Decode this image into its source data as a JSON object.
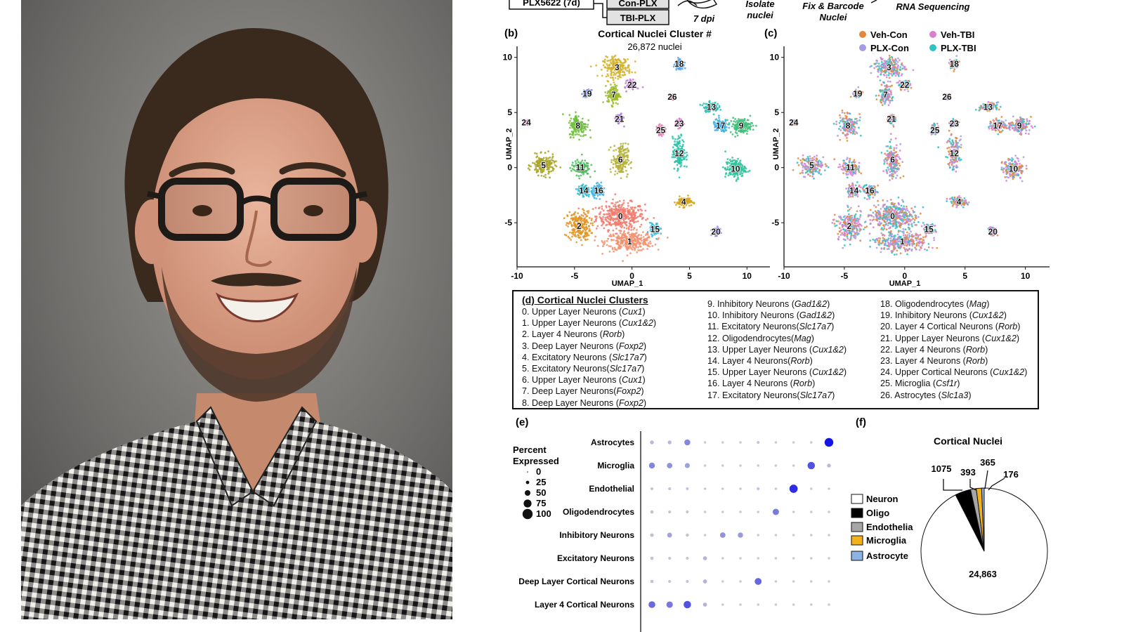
{
  "workflow": {
    "boxes": [
      "PLX5622 (7d)",
      "Con-PLX",
      "TBI-PLX"
    ],
    "steps": [
      "7 dpi",
      "Isolate nuclei",
      "Fix & Barcode Nuclei",
      "RNA Sequencing"
    ]
  },
  "panel_b": {
    "letter": "(b)",
    "title": "Cortical Nuclei Cluster #",
    "subtitle": "26,872 nuclei",
    "xlabel": "UMAP_1",
    "ylabel": "UMAP_2"
  },
  "panel_c": {
    "letter": "(c)",
    "xlabel": "UMAP_1",
    "ylabel": "UMAP_2",
    "legend": [
      {
        "label": "Veh-Con",
        "color": "#e3883a"
      },
      {
        "label": "Veh-TBI",
        "color": "#d97fd0"
      },
      {
        "label": "PLX-Con",
        "color": "#a89be4"
      },
      {
        "label": "PLX-TBI",
        "color": "#2cc3c3"
      }
    ]
  },
  "cluster_table": {
    "letter": "(d)",
    "title": "Cortical Nuclei Clusters",
    "items": [
      {
        "text": "0. Upper Layer Neurons (",
        "gene": "Cux1",
        "end": ")"
      },
      {
        "text": "1. Upper Layer Neurons (",
        "gene": "Cux1&2",
        "end": ")"
      },
      {
        "text": "2. Layer 4 Neurons (",
        "gene": "Rorb",
        "end": ")"
      },
      {
        "text": "3. Deep Layer Neurons (",
        "gene": "Foxp2",
        "end": ")"
      },
      {
        "text": "4. Excitatory Neurons (",
        "gene": "Slc17a7",
        "end": ")"
      },
      {
        "text": "5. Excitatory Neurons(",
        "gene": "Slc17a7",
        "end": ")"
      },
      {
        "text": "6. Upper Layer Neurons (",
        "gene": "Cux1",
        "end": ")"
      },
      {
        "text": "7. Deep Layer Neurons(",
        "gene": "Foxp2",
        "end": ")"
      },
      {
        "text": "8. Deep Layer Neurons (",
        "gene": "Foxp2",
        "end": ")"
      },
      {
        "text": "9.  Inhibitory Neurons (",
        "gene": "Gad1&2",
        "end": ")"
      },
      {
        "text": "10. Inhibitory Neurons (",
        "gene": "Gad1&2",
        "end": ")"
      },
      {
        "text": "11. Excitatory Neurons(",
        "gene": "Slc17a7",
        "end": ")"
      },
      {
        "text": "12. Oligodendrocytes(",
        "gene": "Mag",
        "end": ")"
      },
      {
        "text": "13. Upper Layer Neurons (",
        "gene": "Cux1&2",
        "end": ")"
      },
      {
        "text": "14. Layer 4 Neurons(",
        "gene": "Rorb",
        "end": ")"
      },
      {
        "text": "15. Upper Layer Neurons (",
        "gene": "Cux1&2",
        "end": ")"
      },
      {
        "text": "16. Layer 4 Neurons (",
        "gene": "Rorb",
        "end": ")"
      },
      {
        "text": "17. Excitatory Neurons(",
        "gene": "Slc17a7",
        "end": ")"
      },
      {
        "text": "18. Oligodendrocytes (",
        "gene": "Mag",
        "end": ")"
      },
      {
        "text": "19. Inhibitory Neurons (",
        "gene": "Cux1&2",
        "end": ")"
      },
      {
        "text": "20. Layer 4 Cortical Neurons (",
        "gene": "Rorb",
        "end": ")"
      },
      {
        "text": "21. Upper Layer Neurons (",
        "gene": "Cux1&2",
        "end": ")"
      },
      {
        "text": "22. Layer 4 Neurons (",
        "gene": "Rorb",
        "end": ")"
      },
      {
        "text": "23. Layer 4 Neurons (",
        "gene": "Rorb",
        "end": ")"
      },
      {
        "text": "24. Upper Cortical Neurons (",
        "gene": "Cux1&2",
        "end": ")"
      },
      {
        "text": "25. Microglia (",
        "gene": "Csf1r",
        "end": ")"
      },
      {
        "text": "26. Astrocytes (",
        "gene": "Slc1a3",
        "end": ")"
      }
    ]
  },
  "panel_e": {
    "letter": "(e)",
    "size_legend_title": "Percent Expressed",
    "size_legend": [
      "0",
      "25",
      "50",
      "75",
      "100"
    ]
  },
  "panel_f": {
    "letter": "(f)",
    "title": "Cortical Nuclei",
    "legend": [
      {
        "label": "Neuron",
        "color": "#ffffff"
      },
      {
        "label": "Oligo",
        "color": "#000000"
      },
      {
        "label": "Endothelia",
        "color": "#a6a6a6"
      },
      {
        "label": "Microglia",
        "color": "#f2b21b"
      },
      {
        "label": "Astrocyte",
        "color": "#8db3e2"
      }
    ]
  },
  "chart_data": [
    {
      "type": "scatter",
      "title": "Cortical Nuclei Cluster #",
      "subtitle": "26,872 nuclei",
      "xlabel": "UMAP_1",
      "ylabel": "UMAP_2",
      "xlim": [
        -10,
        12
      ],
      "ylim": [
        -9,
        11
      ],
      "xticks": [
        -10,
        -5,
        0,
        5,
        10
      ],
      "yticks": [
        -5,
        0,
        5,
        10
      ],
      "clusters": [
        {
          "id": 0,
          "x": -1,
          "y": -4.4,
          "sx": 1.9,
          "sy": 1.1,
          "color": "#f07c6e"
        },
        {
          "id": 1,
          "x": -0.2,
          "y": -6.7,
          "sx": 1.9,
          "sy": 0.8,
          "color": "#f3906f"
        },
        {
          "id": 2,
          "x": -4.6,
          "y": -5.3,
          "sx": 0.9,
          "sy": 1.2,
          "color": "#e09527"
        },
        {
          "id": 3,
          "x": -1.3,
          "y": 9.1,
          "sx": 1.1,
          "sy": 0.8,
          "color": "#d3b12a"
        },
        {
          "id": 4,
          "x": 4.5,
          "y": -3.1,
          "sx": 0.6,
          "sy": 0.4,
          "color": "#d6a31c"
        },
        {
          "id": 5,
          "x": -7.7,
          "y": 0.2,
          "sx": 0.9,
          "sy": 0.8,
          "color": "#a8a523"
        },
        {
          "id": 6,
          "x": -1,
          "y": 0.7,
          "sx": 0.6,
          "sy": 1.3,
          "color": "#b5b33a"
        },
        {
          "id": 7,
          "x": -1.6,
          "y": 6.6,
          "sx": 0.5,
          "sy": 0.8,
          "color": "#9cbc2a"
        },
        {
          "id": 8,
          "x": -4.7,
          "y": 3.8,
          "sx": 0.7,
          "sy": 0.9,
          "color": "#6fbe3c"
        },
        {
          "id": 9,
          "x": 9.5,
          "y": 3.8,
          "sx": 0.9,
          "sy": 0.6,
          "color": "#3ebf78"
        },
        {
          "id": 10,
          "x": 9,
          "y": -0.1,
          "sx": 0.8,
          "sy": 0.8,
          "color": "#2fc29b"
        },
        {
          "id": 11,
          "x": -4.5,
          "y": 0,
          "sx": 0.7,
          "sy": 0.6,
          "color": "#48bd5b"
        },
        {
          "id": 12,
          "x": 4.1,
          "y": 1.3,
          "sx": 0.5,
          "sy": 1.3,
          "color": "#2cc2a8"
        },
        {
          "id": 13,
          "x": 6.9,
          "y": 5.5,
          "sx": 0.6,
          "sy": 0.4,
          "color": "#26c0b0"
        },
        {
          "id": 14,
          "x": -4.2,
          "y": -2.1,
          "sx": 0.5,
          "sy": 0.5,
          "color": "#2dbcd0"
        },
        {
          "id": 15,
          "x": 2,
          "y": -5.6,
          "sx": 0.4,
          "sy": 0.5,
          "color": "#3ab8e4"
        },
        {
          "id": 16,
          "x": -2.9,
          "y": -2.1,
          "sx": 0.5,
          "sy": 0.5,
          "color": "#41b5e8"
        },
        {
          "id": 17,
          "x": 7.7,
          "y": 3.8,
          "sx": 0.6,
          "sy": 0.5,
          "color": "#3aaee6"
        },
        {
          "id": 18,
          "x": 4.1,
          "y": 9.4,
          "sx": 0.3,
          "sy": 0.4,
          "color": "#5aa6ea"
        },
        {
          "id": 19,
          "x": -3.9,
          "y": 6.7,
          "sx": 0.3,
          "sy": 0.3,
          "color": "#7c91e8"
        },
        {
          "id": 20,
          "x": 7.3,
          "y": -5.8,
          "sx": 0.3,
          "sy": 0.3,
          "color": "#9a86e4"
        },
        {
          "id": 21,
          "x": -1.1,
          "y": 4.4,
          "sx": 0.3,
          "sy": 0.4,
          "color": "#b27fdd"
        },
        {
          "id": 22,
          "x": 0,
          "y": 7.5,
          "sx": 0.4,
          "sy": 0.4,
          "color": "#c27ad6"
        },
        {
          "id": 23,
          "x": 4.1,
          "y": 4,
          "sx": 0.3,
          "sy": 0.3,
          "color": "#d37ccd"
        },
        {
          "id": 24,
          "x": -9.2,
          "y": 4.1,
          "sx": 0.2,
          "sy": 0.2,
          "color": "#e27ac3"
        },
        {
          "id": 25,
          "x": 2.5,
          "y": 3.4,
          "sx": 0.3,
          "sy": 0.4,
          "color": "#e97bb4"
        },
        {
          "id": 26,
          "x": 3.5,
          "y": 6.4,
          "sx": 0.2,
          "sy": 0.2,
          "color": "#ee7ba6"
        }
      ]
    },
    {
      "type": "scatter",
      "xlabel": "UMAP_1",
      "ylabel": "UMAP_2",
      "xlim": [
        -10,
        12
      ],
      "ylim": [
        -9,
        11
      ],
      "xticks": [
        -10,
        -5,
        0,
        5,
        10
      ],
      "yticks": [
        -5,
        0,
        5,
        10
      ],
      "series": [
        "Veh-Con",
        "Veh-TBI",
        "PLX-Con",
        "PLX-TBI"
      ]
    },
    {
      "type": "scatter",
      "rows": [
        "Astrocytes",
        "Microglia",
        "Endothelial",
        "Oligodendrocytes",
        "Inhibitory Neurons",
        "Excitatory Neurons",
        "Deep Layer Cortical Neurons",
        "Layer 4 Cortical Neurons"
      ],
      "n_columns": 11,
      "cells": [
        [
          [
            0,
            0,
            10
          ],
          [
            1,
            0,
            10
          ],
          [
            2,
            0,
            35
          ],
          [
            3,
            0,
            2
          ],
          [
            4,
            0,
            2
          ],
          [
            5,
            0,
            2
          ],
          [
            6,
            0,
            4
          ],
          [
            7,
            0,
            2
          ],
          [
            8,
            0,
            2
          ],
          [
            9,
            0,
            2
          ],
          [
            10,
            0,
            90
          ]
        ],
        [
          [
            0,
            1,
            35
          ],
          [
            1,
            1,
            28
          ],
          [
            2,
            1,
            22
          ],
          [
            3,
            1,
            2
          ],
          [
            4,
            1,
            2
          ],
          [
            5,
            1,
            2
          ],
          [
            6,
            1,
            2
          ],
          [
            7,
            1,
            2
          ],
          [
            8,
            1,
            2
          ],
          [
            9,
            1,
            60
          ],
          [
            10,
            1,
            10
          ]
        ],
        [
          [
            0,
            2,
            4
          ],
          [
            1,
            2,
            4
          ],
          [
            2,
            2,
            4
          ],
          [
            3,
            2,
            2
          ],
          [
            4,
            2,
            2
          ],
          [
            5,
            2,
            2
          ],
          [
            6,
            2,
            4
          ],
          [
            7,
            2,
            2
          ],
          [
            8,
            2,
            78
          ],
          [
            9,
            2,
            2
          ],
          [
            10,
            2,
            2
          ]
        ],
        [
          [
            0,
            3,
            6
          ],
          [
            1,
            3,
            4
          ],
          [
            2,
            3,
            4
          ],
          [
            3,
            3,
            2
          ],
          [
            4,
            3,
            2
          ],
          [
            5,
            3,
            2
          ],
          [
            6,
            3,
            2
          ],
          [
            7,
            3,
            40
          ],
          [
            8,
            3,
            2
          ],
          [
            9,
            3,
            2
          ],
          [
            10,
            3,
            2
          ]
        ],
        [
          [
            0,
            4,
            8
          ],
          [
            1,
            4,
            20
          ],
          [
            2,
            4,
            5
          ],
          [
            3,
            4,
            2
          ],
          [
            4,
            4,
            28
          ],
          [
            5,
            4,
            25
          ],
          [
            6,
            4,
            2
          ],
          [
            7,
            4,
            2
          ],
          [
            8,
            4,
            2
          ],
          [
            9,
            4,
            2
          ],
          [
            10,
            4,
            2
          ]
        ],
        [
          [
            0,
            5,
            6
          ],
          [
            1,
            5,
            4
          ],
          [
            2,
            5,
            4
          ],
          [
            3,
            5,
            12
          ],
          [
            4,
            5,
            2
          ],
          [
            5,
            5,
            2
          ],
          [
            6,
            5,
            2
          ],
          [
            7,
            5,
            2
          ],
          [
            8,
            5,
            2
          ],
          [
            9,
            5,
            2
          ],
          [
            10,
            5,
            2
          ]
        ],
        [
          [
            0,
            6,
            6
          ],
          [
            1,
            6,
            4
          ],
          [
            2,
            6,
            4
          ],
          [
            3,
            6,
            12
          ],
          [
            4,
            6,
            2
          ],
          [
            5,
            6,
            2
          ],
          [
            6,
            6,
            50
          ],
          [
            7,
            6,
            2
          ],
          [
            8,
            6,
            2
          ],
          [
            9,
            6,
            2
          ],
          [
            10,
            6,
            2
          ]
        ],
        [
          [
            0,
            7,
            48
          ],
          [
            1,
            7,
            42
          ],
          [
            2,
            7,
            60
          ],
          [
            3,
            7,
            12
          ],
          [
            4,
            7,
            2
          ],
          [
            5,
            7,
            2
          ],
          [
            6,
            7,
            2
          ],
          [
            7,
            7,
            2
          ],
          [
            8,
            7,
            2
          ],
          [
            9,
            7,
            2
          ],
          [
            10,
            7,
            2
          ]
        ]
      ]
    },
    {
      "type": "pie",
      "title": "Cortical Nuclei",
      "labels": [
        "Neuron",
        "Oligo",
        "Endothelia",
        "Microglia",
        "Astrocyte"
      ],
      "values": [
        24863,
        1075,
        393,
        365,
        176
      ],
      "colors": [
        "#ffffff",
        "#000000",
        "#a6a6a6",
        "#f2b21b",
        "#8db3e2"
      ]
    }
  ]
}
